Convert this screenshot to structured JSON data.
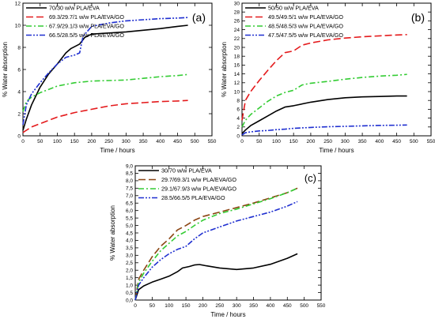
{
  "chart_data": [
    {
      "type": "line",
      "panel_label": "(a)",
      "xlabel": "Time / hours",
      "ylabel": "% Water absorption",
      "xlim": [
        0,
        550
      ],
      "ylim": [
        0,
        12
      ],
      "xticks": [
        0,
        50,
        100,
        150,
        200,
        250,
        300,
        350,
        400,
        450,
        500,
        550
      ],
      "yticks": [
        0,
        2,
        4,
        6,
        8,
        10,
        12
      ],
      "grid": false,
      "legend_position": "top-left",
      "series": [
        {
          "name": "70/30 w/w PLA/EVA",
          "color": "#000000",
          "dash": "solid",
          "x": [
            0,
            10,
            25,
            50,
            75,
            100,
            125,
            140,
            165,
            180,
            200,
            250,
            300,
            350,
            400,
            450,
            480
          ],
          "y": [
            0.5,
            1.5,
            2.8,
            4.4,
            5.6,
            6.5,
            7.5,
            7.9,
            8.3,
            8.9,
            9.2,
            9.3,
            9.4,
            9.55,
            9.7,
            9.9,
            10.0
          ]
        },
        {
          "name": "69.3/29.7/1 w/w PLA/EVA/GO",
          "color": "#e41a1c",
          "dash": "dash",
          "x": [
            0,
            10,
            25,
            50,
            75,
            100,
            150,
            200,
            250,
            300,
            350,
            400,
            450,
            480
          ],
          "y": [
            0.3,
            0.5,
            0.8,
            1.1,
            1.4,
            1.7,
            2.1,
            2.4,
            2.7,
            2.9,
            3.0,
            3.1,
            3.15,
            3.2
          ]
        },
        {
          "name": "67.9/29.1/3 w/w PLA/EVA/GO",
          "color": "#33cc33",
          "dash": "dashdot",
          "x": [
            0,
            10,
            25,
            50,
            75,
            100,
            150,
            200,
            250,
            300,
            350,
            400,
            450,
            480
          ],
          "y": [
            2.2,
            3.1,
            3.5,
            3.9,
            4.2,
            4.5,
            4.8,
            4.95,
            5.0,
            5.05,
            5.2,
            5.35,
            5.45,
            5.55
          ]
        },
        {
          "name": "66.5/28.5/5 w/w PLA/EVA/GO",
          "color": "#1f2fd0",
          "dash": "dashdotdot",
          "x": [
            0,
            10,
            25,
            50,
            75,
            100,
            125,
            150,
            165,
            175,
            200,
            250,
            300,
            350,
            400,
            450,
            480
          ],
          "y": [
            1.0,
            2.8,
            3.8,
            4.8,
            5.7,
            6.5,
            7.1,
            7.3,
            7.5,
            9.0,
            9.9,
            10.2,
            10.4,
            10.5,
            10.6,
            10.65,
            10.7
          ]
        }
      ]
    },
    {
      "type": "line",
      "panel_label": "(b)",
      "xlabel": "Time / hours",
      "ylabel": "% Water absorption",
      "xlim": [
        0,
        550
      ],
      "ylim": [
        0,
        30
      ],
      "xticks": [
        0,
        50,
        100,
        150,
        200,
        250,
        300,
        350,
        400,
        450,
        500,
        550
      ],
      "yticks": [
        0,
        2,
        4,
        6,
        8,
        10,
        12,
        14,
        16,
        18,
        20,
        22,
        24,
        26,
        28,
        30
      ],
      "grid": false,
      "legend_position": "top-left",
      "series": [
        {
          "name": "50/50 w/w PLA/EVA",
          "color": "#000000",
          "dash": "solid",
          "x": [
            0,
            10,
            25,
            50,
            75,
            100,
            125,
            150,
            200,
            250,
            300,
            350,
            400,
            450,
            480
          ],
          "y": [
            0.5,
            1.3,
            2.3,
            3.4,
            4.5,
            5.6,
            6.5,
            6.8,
            7.6,
            8.2,
            8.6,
            8.8,
            8.9,
            9.0,
            9.0
          ]
        },
        {
          "name": "49.5/49.5/1 w/w PLA/EVA/GO",
          "color": "#e41a1c",
          "dash": "dash",
          "x": [
            0,
            10,
            25,
            50,
            75,
            100,
            125,
            150,
            175,
            200,
            250,
            300,
            350,
            400,
            450,
            480
          ],
          "y": [
            3.5,
            8.0,
            10.0,
            12.5,
            14.8,
            17.0,
            18.8,
            19.2,
            20.5,
            21.0,
            21.7,
            22.1,
            22.4,
            22.6,
            22.8,
            22.9
          ]
        },
        {
          "name": "48.5/48.5/3 w/w PLA/EVA/GO",
          "color": "#33cc33",
          "dash": "dashdot",
          "x": [
            0,
            10,
            25,
            50,
            75,
            100,
            125,
            150,
            175,
            200,
            250,
            300,
            350,
            400,
            450,
            480
          ],
          "y": [
            2.0,
            3.5,
            4.8,
            6.3,
            7.8,
            9.0,
            9.8,
            10.3,
            11.5,
            11.9,
            12.3,
            12.8,
            13.2,
            13.5,
            13.7,
            13.9
          ]
        },
        {
          "name": "47.5/47.5/5 w/w PLA/EVA/GO",
          "color": "#1f2fd0",
          "dash": "dashdotdot",
          "x": [
            0,
            10,
            25,
            50,
            75,
            100,
            125,
            150,
            200,
            250,
            300,
            350,
            400,
            450,
            480
          ],
          "y": [
            0.2,
            0.7,
            0.9,
            1.1,
            1.2,
            1.4,
            1.5,
            1.7,
            1.9,
            2.05,
            2.15,
            2.25,
            2.35,
            2.4,
            2.45
          ]
        }
      ]
    },
    {
      "type": "line",
      "panel_label": "(c)",
      "xlabel": "Time / hours",
      "ylabel": "% Water absorption",
      "xlim": [
        0,
        550
      ],
      "ylim": [
        0,
        9
      ],
      "xticks": [
        0,
        50,
        100,
        150,
        200,
        250,
        300,
        350,
        400,
        450,
        500,
        550
      ],
      "yticks": [
        "0,0",
        "0,5",
        "1,0",
        "1,5",
        "2,0",
        "2,5",
        "3,0",
        "3,5",
        "4,0",
        "4,5",
        "5,0",
        "5,5",
        "6,0",
        "6,5",
        "7,0",
        "7,5",
        "8,0",
        "8,5",
        "9,0"
      ],
      "grid": false,
      "legend_position": "top-left",
      "series": [
        {
          "name": "30/70 w/w PLA/EVA",
          "color": "#000000",
          "dash": "solid",
          "x": [
            0,
            10,
            25,
            50,
            75,
            100,
            125,
            140,
            160,
            175,
            190,
            210,
            250,
            300,
            350,
            400,
            450,
            480
          ],
          "y": [
            0.0,
            0.7,
            0.95,
            1.2,
            1.4,
            1.6,
            1.9,
            2.15,
            2.25,
            2.35,
            2.38,
            2.3,
            2.15,
            2.05,
            2.15,
            2.4,
            2.8,
            3.1
          ]
        },
        {
          "name": "29.7/69.3/1 w/w PLA/EVA/GO",
          "color": "#8b4513",
          "dash": "dash",
          "x": [
            0,
            10,
            25,
            50,
            75,
            100,
            125,
            150,
            175,
            200,
            250,
            300,
            350,
            400,
            450,
            480
          ],
          "y": [
            0.0,
            1.4,
            2.0,
            2.9,
            3.6,
            4.1,
            4.7,
            5.0,
            5.35,
            5.6,
            5.9,
            6.2,
            6.5,
            6.85,
            7.2,
            7.5
          ]
        },
        {
          "name": "29.1/67.9/3 w/w PLA/EVA/GO",
          "color": "#33cc33",
          "dash": "dashdot",
          "x": [
            0,
            10,
            25,
            50,
            75,
            100,
            125,
            150,
            175,
            200,
            250,
            300,
            350,
            400,
            450,
            480
          ],
          "y": [
            0.0,
            1.2,
            1.8,
            2.6,
            3.3,
            3.8,
            4.3,
            4.6,
            5.0,
            5.35,
            5.8,
            6.1,
            6.45,
            6.8,
            7.2,
            7.5
          ]
        },
        {
          "name": "28.5/66.5/5 PLA/EVA/GO",
          "color": "#1f2fd0",
          "dash": "dashdotdot",
          "x": [
            0,
            10,
            25,
            50,
            75,
            100,
            125,
            150,
            175,
            200,
            250,
            300,
            350,
            400,
            450,
            480
          ],
          "y": [
            0.0,
            1.0,
            1.5,
            2.2,
            2.7,
            3.1,
            3.4,
            3.6,
            4.1,
            4.5,
            4.9,
            5.3,
            5.6,
            5.9,
            6.3,
            6.6
          ]
        }
      ]
    }
  ]
}
